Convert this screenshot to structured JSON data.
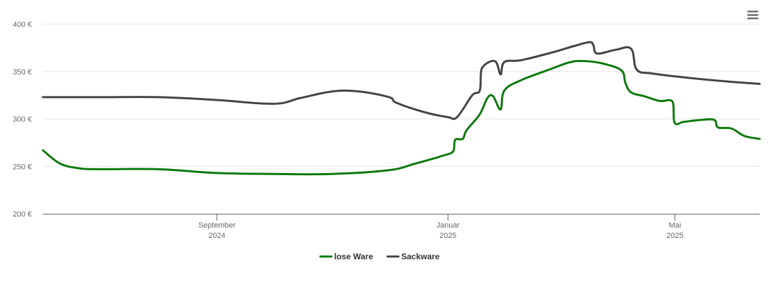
{
  "chart_data": {
    "type": "line",
    "title": "",
    "xlabel": "",
    "ylabel": "",
    "ylim": [
      200,
      400
    ],
    "y_ticks": [
      {
        "value": 200,
        "label": "200 €"
      },
      {
        "value": 250,
        "label": "250 €"
      },
      {
        "value": 300,
        "label": "300 €"
      },
      {
        "value": 350,
        "label": "350 €"
      },
      {
        "value": 400,
        "label": "400 €"
      }
    ],
    "x_range": [
      "2024-06-01",
      "2025-06-15"
    ],
    "x_ticks": [
      {
        "date": "2024-09-01",
        "month": "September",
        "year": "2024"
      },
      {
        "date": "2025-01-01",
        "month": "Januar",
        "year": "2025"
      },
      {
        "date": "2025-05-01",
        "month": "Mai",
        "year": "2025"
      }
    ],
    "grid": true,
    "legend_position": "bottom-center",
    "series": [
      {
        "name": "lose Ware",
        "color": "#0a7a0a",
        "points": [
          [
            "2024-06-01",
            267
          ],
          [
            "2024-06-10",
            253
          ],
          [
            "2024-06-20",
            248
          ],
          [
            "2024-07-01",
            247
          ],
          [
            "2024-08-01",
            247
          ],
          [
            "2024-09-01",
            243
          ],
          [
            "2024-10-01",
            242
          ],
          [
            "2024-11-01",
            242
          ],
          [
            "2024-12-01",
            246
          ],
          [
            "2024-12-15",
            253
          ],
          [
            "2024-12-29",
            261
          ],
          [
            "2025-01-04",
            266
          ],
          [
            "2025-01-05",
            278
          ],
          [
            "2025-01-09",
            279
          ],
          [
            "2025-01-11",
            288
          ],
          [
            "2025-01-18",
            305
          ],
          [
            "2025-01-22",
            322
          ],
          [
            "2025-01-25",
            324
          ],
          [
            "2025-01-29",
            310
          ],
          [
            "2025-01-31",
            330
          ],
          [
            "2025-02-09",
            341
          ],
          [
            "2025-02-25",
            353
          ],
          [
            "2025-03-07",
            360
          ],
          [
            "2025-03-15",
            361
          ],
          [
            "2025-03-25",
            358
          ],
          [
            "2025-04-03",
            351
          ],
          [
            "2025-04-05",
            338
          ],
          [
            "2025-04-08",
            328
          ],
          [
            "2025-04-15",
            324
          ],
          [
            "2025-04-23",
            319
          ],
          [
            "2025-04-30",
            318
          ],
          [
            "2025-05-01",
            296
          ],
          [
            "2025-05-06",
            297
          ],
          [
            "2025-05-15",
            299
          ],
          [
            "2025-05-22",
            299
          ],
          [
            "2025-05-24",
            291
          ],
          [
            "2025-05-31",
            290
          ],
          [
            "2025-06-07",
            282
          ],
          [
            "2025-06-15",
            279
          ]
        ]
      },
      {
        "name": "Sackware",
        "color": "#434348",
        "points": [
          [
            "2024-06-01",
            323
          ],
          [
            "2024-07-01",
            323
          ],
          [
            "2024-08-01",
            323
          ],
          [
            "2024-09-01",
            320
          ],
          [
            "2024-10-01",
            316
          ],
          [
            "2024-10-15",
            322
          ],
          [
            "2024-11-01",
            329
          ],
          [
            "2024-11-15",
            329
          ],
          [
            "2024-12-01",
            323
          ],
          [
            "2024-12-05",
            317
          ],
          [
            "2024-12-20",
            307
          ],
          [
            "2025-01-01",
            302
          ],
          [
            "2025-01-06",
            302
          ],
          [
            "2025-01-14",
            325
          ],
          [
            "2025-01-18",
            330
          ],
          [
            "2025-01-19",
            353
          ],
          [
            "2025-01-26",
            361
          ],
          [
            "2025-01-29",
            347
          ],
          [
            "2025-01-31",
            360
          ],
          [
            "2025-02-09",
            362
          ],
          [
            "2025-02-25",
            370
          ],
          [
            "2025-03-09",
            377
          ],
          [
            "2025-03-17",
            381
          ],
          [
            "2025-03-19",
            378
          ],
          [
            "2025-03-21",
            369
          ],
          [
            "2025-03-31",
            373
          ],
          [
            "2025-04-08",
            374
          ],
          [
            "2025-04-11",
            352
          ],
          [
            "2025-04-19",
            348
          ],
          [
            "2025-05-01",
            345
          ],
          [
            "2025-05-15",
            342
          ],
          [
            "2025-06-01",
            339
          ],
          [
            "2025-06-15",
            337
          ]
        ]
      }
    ]
  }
}
